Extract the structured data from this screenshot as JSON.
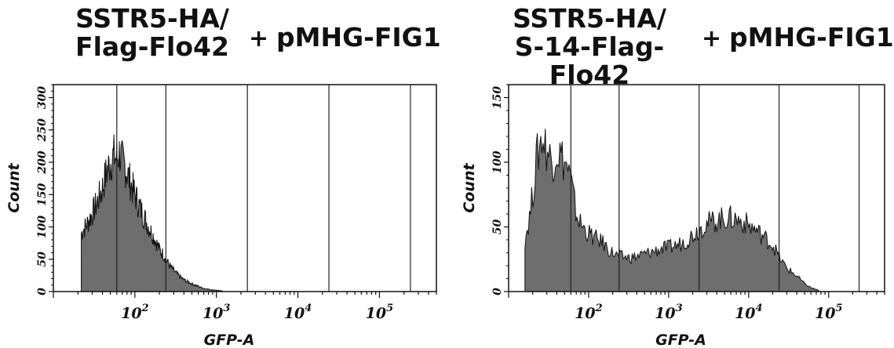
{
  "panels": [
    {
      "title_line1": "SSTR5-HA/",
      "title_line2": "Flag-Flo42",
      "plus": "+",
      "suffix": "pMHG-FIG1"
    },
    {
      "title_line1": "SSTR5-HA/",
      "title_line2": "S-14-Flag-Flo42",
      "plus": "+",
      "suffix": "pMHG-FIG1"
    }
  ],
  "chart_data": [
    {
      "type": "area",
      "title": "SSTR5-HA/ Flag-Flo42 + pMHG-FIG1",
      "xlabel": "GFP-A",
      "ylabel": "Count",
      "x_scale": "log",
      "xlim": [
        10,
        500000
      ],
      "x_tick_labels": [
        "10^2",
        "10^3",
        "10^4",
        "10^5"
      ],
      "ylim": [
        0,
        320
      ],
      "y_ticks": [
        0,
        50,
        100,
        150,
        200,
        250,
        300
      ],
      "gate_lines_x": [
        60,
        240,
        2400,
        24000,
        240000
      ],
      "fill_color": "#6e6e6e",
      "series": [
        {
          "x": [
            22,
            26,
            30,
            35,
            40,
            45,
            50,
            55,
            60,
            65,
            70,
            75,
            80,
            90,
            100,
            115,
            130,
            150,
            170,
            200,
            230,
            260,
            300,
            350,
            400,
            500,
            600,
            700,
            850,
            1000,
            1200
          ],
          "values": [
            90,
            105,
            120,
            140,
            160,
            185,
            200,
            210,
            205,
            215,
            200,
            195,
            185,
            165,
            150,
            130,
            115,
            98,
            85,
            65,
            55,
            42,
            32,
            24,
            18,
            12,
            8,
            5,
            3,
            2,
            1
          ]
        }
      ]
    },
    {
      "type": "area",
      "title": "SSTR5-HA/ S-14-Flag-Flo42 + pMHG-FIG1",
      "xlabel": "GFP-A",
      "ylabel": "Count",
      "x_scale": "log",
      "xlim": [
        10,
        500000
      ],
      "x_tick_labels": [
        "10^2",
        "10^3",
        "10^4",
        "10^5"
      ],
      "ylim": [
        0,
        160
      ],
      "y_ticks": [
        0,
        50,
        100,
        150
      ],
      "gate_lines_x": [
        60,
        240,
        2400,
        24000,
        240000
      ],
      "fill_color": "#6e6e6e",
      "series": [
        {
          "x": [
            16,
            18,
            20,
            22,
            26,
            30,
            35,
            40,
            45,
            50,
            55,
            60,
            70,
            80,
            90,
            100,
            115,
            130,
            150,
            180,
            220,
            260,
            320,
            400,
            500,
            650,
            800,
            1000,
            1300,
            1700,
            2200,
            2800,
            3500,
            4500,
            5500,
            7000,
            9000,
            12000,
            15000,
            20000,
            25000,
            30000,
            40000,
            50000,
            60000,
            75000
          ],
          "values": [
            40,
            55,
            75,
            100,
            120,
            110,
            100,
            110,
            105,
            100,
            95,
            85,
            60,
            52,
            48,
            45,
            42,
            40,
            38,
            32,
            28,
            27,
            26,
            27,
            29,
            31,
            33,
            34,
            36,
            40,
            46,
            52,
            54,
            56,
            57,
            56,
            53,
            48,
            43,
            36,
            25,
            18,
            12,
            6,
            3,
            1
          ]
        }
      ]
    }
  ]
}
